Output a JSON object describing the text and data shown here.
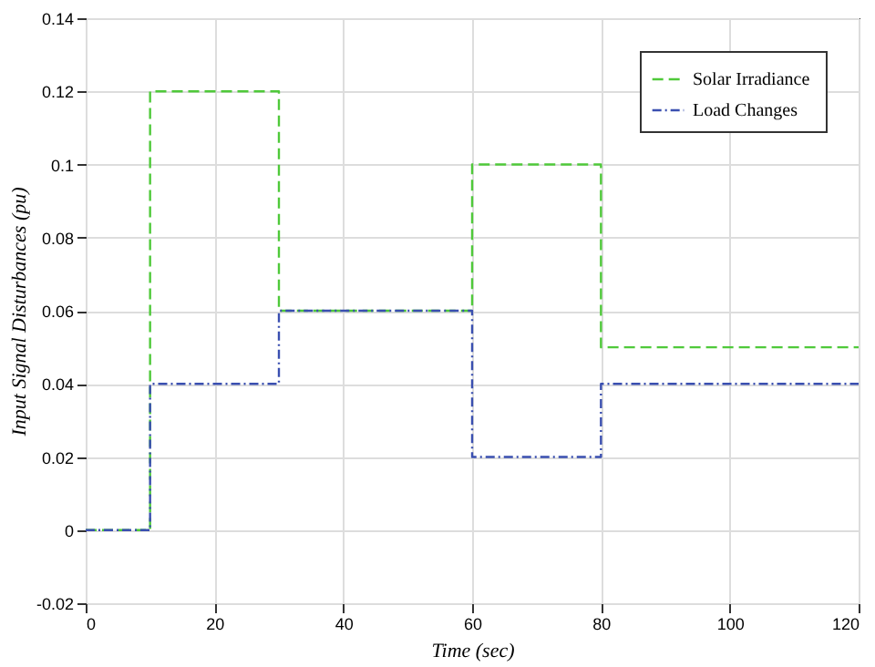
{
  "chart_data": {
    "type": "line",
    "xlabel": "Time (sec)",
    "ylabel": "Input Signal Disturbances (pu)",
    "xlim": [
      0,
      120
    ],
    "xticks": [
      0,
      20,
      40,
      60,
      80,
      100,
      120
    ],
    "ylim": [
      -0.02,
      0.14
    ],
    "yticks": [
      -0.02,
      0,
      0.02,
      0.04,
      0.06,
      0.08,
      0.1,
      0.12,
      0.14
    ],
    "grid": true,
    "legend": "top right",
    "series": [
      {
        "name": "Solar  Irradiance",
        "color": "#4fc93a",
        "line_style": "dashed",
        "x": [
          0,
          10,
          10,
          30,
          30,
          60,
          60,
          80,
          80,
          120
        ],
        "values": [
          0,
          0,
          0.12,
          0.12,
          0.06,
          0.06,
          0.1,
          0.1,
          0.05,
          0.05
        ]
      },
      {
        "name": "Load  Changes",
        "color": "#3a4fb0",
        "line_style": "dotted",
        "x": [
          0,
          10,
          10,
          30,
          30,
          60,
          60,
          80,
          80,
          120
        ],
        "values": [
          0,
          0,
          0.04,
          0.04,
          0.06,
          0.06,
          0.02,
          0.02,
          0.04,
          0.04
        ]
      }
    ]
  }
}
